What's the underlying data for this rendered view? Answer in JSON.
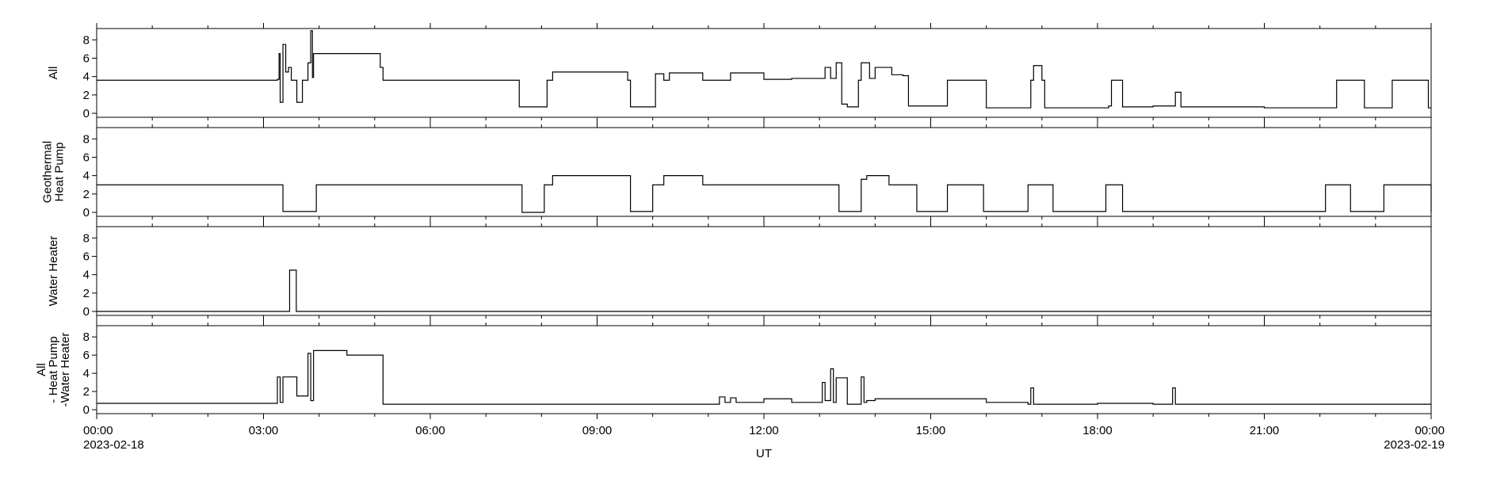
{
  "chart_data": {
    "type": "line",
    "xlabel": "UT",
    "x_range": [
      "2023-02-18 00:00",
      "2023-02-19 00:00"
    ],
    "x_ticks": [
      {
        "time": "00:00",
        "date": "2023-02-18"
      },
      {
        "time": "03:00",
        "date": ""
      },
      {
        "time": "06:00",
        "date": ""
      },
      {
        "time": "09:00",
        "date": ""
      },
      {
        "time": "12:00",
        "date": ""
      },
      {
        "time": "15:00",
        "date": ""
      },
      {
        "time": "18:00",
        "date": ""
      },
      {
        "time": "21:00",
        "date": ""
      },
      {
        "time": "00:00",
        "date": "2023-02-19"
      }
    ],
    "panels": [
      {
        "ylabel_lines": [
          "All"
        ],
        "ylim": [
          0,
          8.8
        ],
        "yticks": [
          0,
          2,
          4,
          6,
          8
        ],
        "grid": false,
        "series": {
          "x_hours": [
            0,
            3.25,
            3.28,
            3.3,
            3.35,
            3.4,
            3.45,
            3.5,
            3.55,
            3.6,
            3.7,
            3.8,
            3.85,
            3.88,
            3.9,
            5.1,
            5.15,
            6.8,
            7.0,
            7.6,
            7.62,
            8.1,
            8.2,
            8.5,
            9.0,
            9.55,
            9.6,
            10.0,
            10.05,
            10.2,
            10.3,
            10.8,
            10.9,
            11.3,
            11.4,
            12.0,
            12.5,
            13.0,
            13.1,
            13.2,
            13.3,
            13.4,
            13.5,
            13.7,
            13.75,
            13.9,
            14.0,
            14.3,
            14.5,
            14.6,
            14.65,
            15.25,
            15.3,
            15.9,
            16.0,
            16.7,
            16.8,
            16.85,
            17.0,
            17.05,
            18.1,
            18.2,
            18.25,
            18.4,
            18.45,
            19.0,
            19.35,
            19.4,
            19.5,
            20.0,
            20.5,
            21.0,
            21.5,
            21.9,
            22.0,
            22.3,
            22.35,
            22.8,
            22.85,
            23.3,
            23.35,
            23.95,
            24.0
          ],
          "y": [
            3.6,
            3.7,
            6.5,
            1.2,
            7.5,
            4.5,
            5.0,
            3.6,
            3.6,
            1.2,
            3.6,
            5.5,
            9.0,
            3.9,
            6.5,
            5.0,
            3.6,
            3.6,
            3.6,
            0.7,
            0.7,
            3.6,
            4.5,
            4.5,
            4.5,
            3.6,
            0.7,
            0.7,
            4.3,
            3.6,
            4.4,
            4.4,
            3.6,
            3.6,
            4.4,
            3.7,
            3.8,
            3.8,
            5.0,
            3.8,
            5.5,
            1.0,
            0.7,
            3.6,
            5.5,
            3.8,
            5.0,
            4.2,
            4.1,
            0.8,
            0.8,
            0.8,
            3.6,
            3.6,
            0.6,
            0.6,
            3.6,
            5.2,
            3.6,
            0.6,
            0.6,
            0.8,
            3.6,
            3.6,
            0.7,
            0.8,
            0.8,
            2.3,
            0.7,
            0.7,
            0.7,
            0.6,
            0.6,
            0.6,
            0.6,
            3.6,
            3.6,
            0.6,
            0.6,
            3.6,
            3.6,
            0.6,
            0.6
          ]
        }
      },
      {
        "ylabel_lines": [
          "Geothermal",
          "Heat Pump"
        ],
        "ylim": [
          0,
          8.8
        ],
        "yticks": [
          0,
          2,
          4,
          6,
          8
        ],
        "grid": false,
        "series": {
          "x_hours": [
            0,
            3.3,
            3.35,
            3.9,
            3.95,
            7.6,
            7.65,
            7.85,
            8.05,
            8.2,
            9.0,
            9.6,
            9.65,
            9.9,
            10.0,
            10.2,
            10.8,
            10.9,
            13.3,
            13.35,
            13.65,
            13.75,
            13.85,
            14.05,
            14.25,
            14.75,
            15.2,
            15.3,
            15.85,
            15.95,
            16.6,
            16.75,
            17.1,
            17.2,
            18.05,
            18.15,
            18.4,
            18.45,
            22.0,
            22.1,
            22.5,
            22.55,
            23.05,
            23.15,
            23.95,
            24.0
          ],
          "y": [
            3.0,
            3.0,
            0.1,
            0.1,
            3.0,
            3.0,
            0.0,
            0.0,
            3.0,
            4.0,
            4.0,
            0.1,
            0.1,
            0.1,
            3.0,
            4.0,
            4.0,
            3.0,
            3.0,
            0.1,
            0.1,
            3.6,
            4.0,
            4.0,
            3.0,
            0.1,
            0.1,
            3.0,
            3.0,
            0.1,
            0.1,
            3.0,
            3.0,
            0.1,
            0.1,
            3.0,
            3.0,
            0.1,
            0.1,
            3.0,
            3.0,
            0.1,
            0.1,
            3.0,
            3.0,
            0.0
          ]
        }
      },
      {
        "ylabel_lines": [
          "Water Heater"
        ],
        "ylim": [
          0,
          8.8
        ],
        "yticks": [
          0,
          2,
          4,
          6,
          8
        ],
        "grid": false,
        "series": {
          "x_hours": [
            0,
            3.45,
            3.47,
            3.57,
            3.59,
            24.0
          ],
          "y": [
            0.0,
            0.0,
            4.5,
            4.5,
            0.0,
            0.0
          ]
        }
      },
      {
        "ylabel_lines": [
          "All",
          "- Heat Pump",
          "-Water Heater"
        ],
        "ylim": [
          0,
          8.8
        ],
        "yticks": [
          0,
          2,
          4,
          6,
          8
        ],
        "grid": false,
        "series": {
          "x_hours": [
            0,
            3.2,
            3.25,
            3.3,
            3.35,
            3.5,
            3.6,
            3.8,
            3.85,
            3.9,
            4.5,
            5.1,
            5.15,
            7.0,
            10.0,
            11.2,
            11.3,
            11.4,
            11.5,
            12.0,
            12.5,
            13.0,
            13.05,
            13.1,
            13.2,
            13.25,
            13.3,
            13.5,
            13.75,
            13.8,
            13.85,
            14.0,
            14.5,
            15.0,
            16.0,
            16.75,
            16.8,
            16.85,
            17.0,
            18.0,
            18.5,
            19.0,
            19.35,
            19.4,
            19.5,
            20.0,
            21.0,
            22.0,
            23.0,
            24.0
          ],
          "y": [
            0.7,
            0.7,
            3.6,
            0.8,
            3.6,
            3.6,
            1.5,
            6.2,
            1.0,
            6.5,
            6.0,
            6.0,
            0.6,
            0.6,
            0.6,
            1.4,
            0.8,
            1.3,
            0.8,
            1.2,
            0.8,
            0.8,
            3.0,
            1.0,
            4.5,
            0.8,
            3.5,
            0.6,
            3.6,
            0.8,
            1.0,
            1.2,
            1.2,
            1.2,
            0.8,
            0.6,
            2.4,
            0.6,
            0.6,
            0.7,
            0.7,
            0.6,
            2.4,
            0.6,
            0.6,
            0.6,
            0.6,
            0.6,
            0.6,
            0.6
          ]
        }
      }
    ]
  }
}
